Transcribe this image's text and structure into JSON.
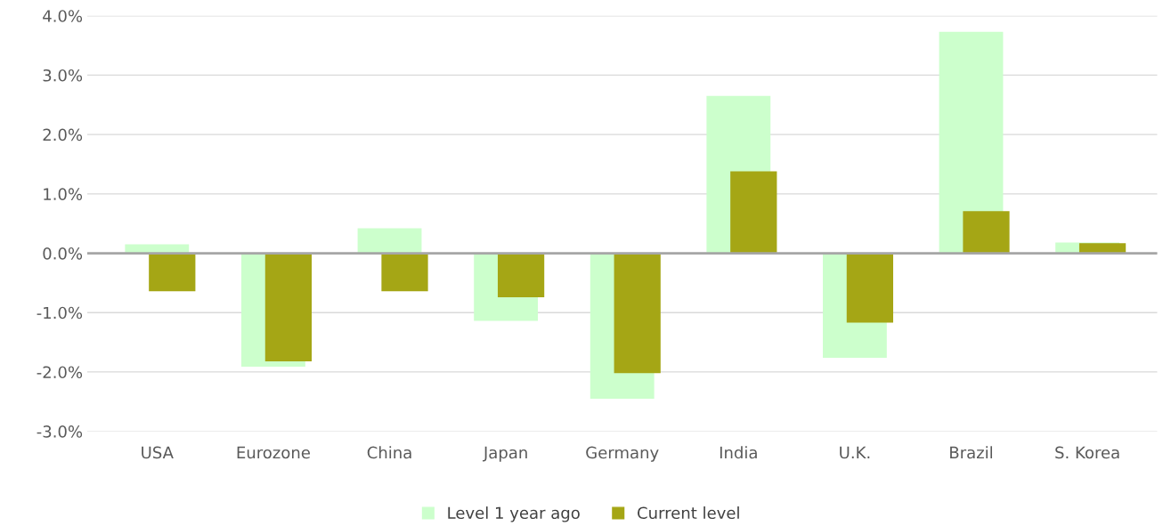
{
  "chart_data": {
    "type": "bar",
    "categories": [
      "USA",
      "Eurozone",
      "China",
      "Japan",
      "Germany",
      "India",
      "U.K.",
      "Brazil",
      "S. Korea"
    ],
    "series": [
      {
        "name": "Level 1 year ago",
        "color": "#ccffcc",
        "values": [
          0.15,
          -1.91,
          0.42,
          -1.14,
          -2.45,
          2.65,
          -1.76,
          3.73,
          0.18
        ]
      },
      {
        "name": "Current level",
        "color": "#a5a615",
        "values": [
          -0.64,
          -1.82,
          -0.64,
          -0.74,
          -2.02,
          1.38,
          -1.17,
          0.71,
          0.17
        ]
      }
    ],
    "ylim": [
      -3.0,
      4.0
    ],
    "yticks": [
      {
        "value": -3,
        "label": "-3.0%"
      },
      {
        "value": -2,
        "label": "-2.0%"
      },
      {
        "value": -1,
        "label": "-1.0%"
      },
      {
        "value": 0,
        "label": "0.0%"
      },
      {
        "value": 1,
        "label": "1.0%"
      },
      {
        "value": 2,
        "label": "2.0%"
      },
      {
        "value": 3,
        "label": "3.0%"
      },
      {
        "value": 4,
        "label": "4.0%"
      }
    ],
    "grid": "y",
    "legend": "bottom"
  }
}
